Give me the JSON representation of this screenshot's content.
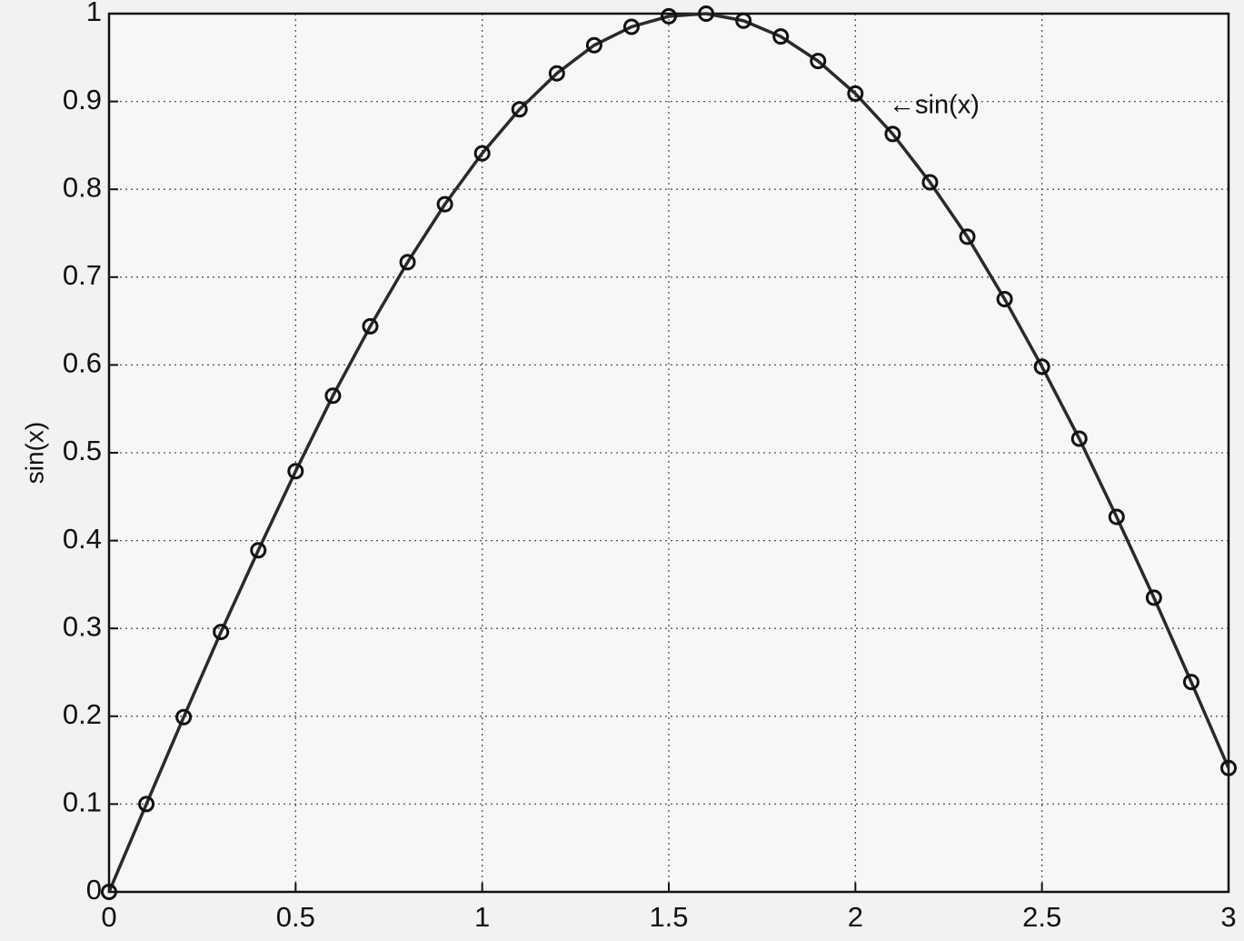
{
  "chart_data": {
    "type": "line",
    "ylabel": "sin(x)",
    "annotation": "←sin(x)",
    "x": [
      0,
      0.1,
      0.2,
      0.3,
      0.4,
      0.5,
      0.6,
      0.7,
      0.8,
      0.9,
      1,
      1.1,
      1.2,
      1.3,
      1.4,
      1.5,
      1.6,
      1.7,
      1.8,
      1.9,
      2,
      2.1,
      2.2,
      2.3,
      2.4,
      2.5,
      2.6,
      2.7,
      2.8,
      2.9,
      3
    ],
    "values": [
      0,
      0.1,
      0.199,
      0.296,
      0.389,
      0.479,
      0.565,
      0.644,
      0.717,
      0.783,
      0.841,
      0.891,
      0.932,
      0.964,
      0.985,
      0.997,
      1,
      0.992,
      0.974,
      0.946,
      0.909,
      0.863,
      0.808,
      0.746,
      0.675,
      0.598,
      0.516,
      0.427,
      0.335,
      0.239,
      0.141
    ],
    "color": "#2a2a2a",
    "marker": "circle",
    "xlim": [
      0,
      3
    ],
    "xticks": [
      0,
      0.5,
      1,
      1.5,
      2,
      2.5,
      3
    ],
    "ylim": [
      0,
      1
    ],
    "yticks": [
      0,
      0.1,
      0.2,
      0.3,
      0.4,
      0.5,
      0.6,
      0.7,
      0.8,
      0.9,
      1
    ],
    "grid": true
  }
}
